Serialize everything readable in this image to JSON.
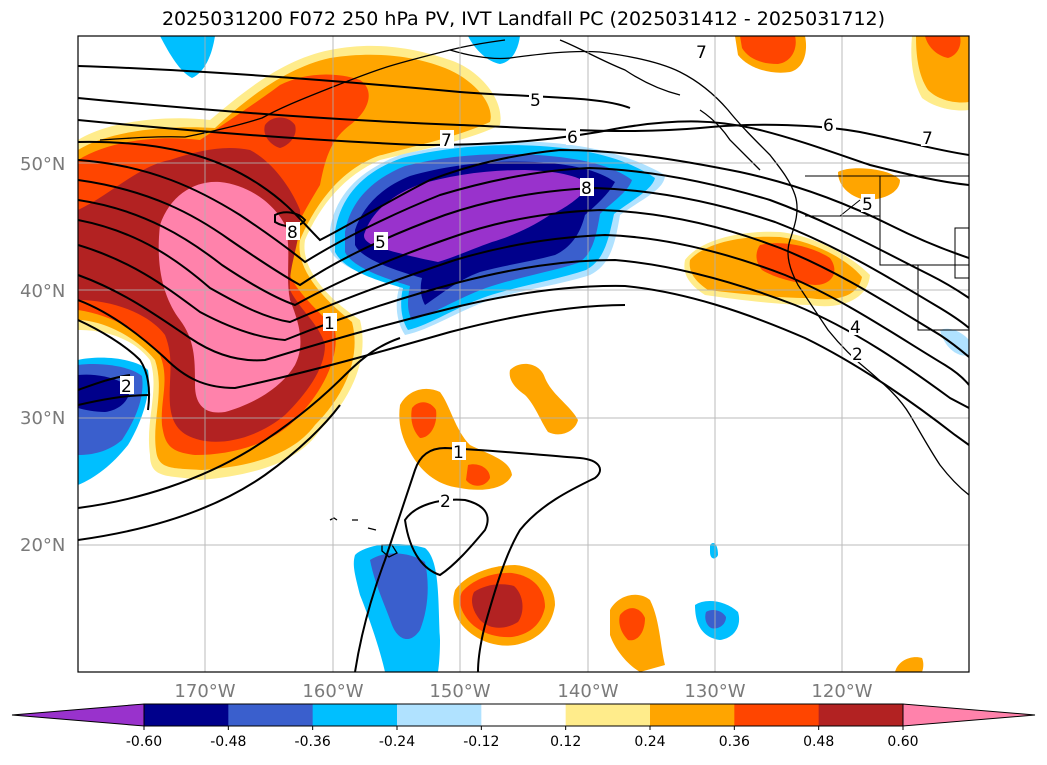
{
  "title": "2025031200 F072 250 hPa PV, IVT Landfall PC (2025031412 - 2025031712)",
  "lat_labels": [
    "50°N",
    "40°N",
    "30°N",
    "20°N"
  ],
  "lon_labels": [
    "170°W",
    "160°W",
    "150°W",
    "140°W",
    "130°W",
    "120°W"
  ],
  "contour_labels": [
    "5",
    "6",
    "7",
    "7",
    "6",
    "7",
    "5",
    "8",
    "5",
    "8",
    "1",
    "2",
    "1",
    "2",
    "4",
    "2"
  ],
  "colorbar": {
    "colors": [
      "#9932cc",
      "#00008b",
      "#3a5fcd",
      "#00bfff",
      "#b0e2ff",
      "#ffffff",
      "#ffec8b",
      "#ffa500",
      "#ff4500",
      "#b22222",
      "#ff82ab"
    ],
    "tick_labels": [
      "-0.60",
      "-0.48",
      "-0.36",
      "-0.24",
      "-0.12",
      "0.12",
      "0.24",
      "0.36",
      "0.48",
      "0.60"
    ]
  }
}
